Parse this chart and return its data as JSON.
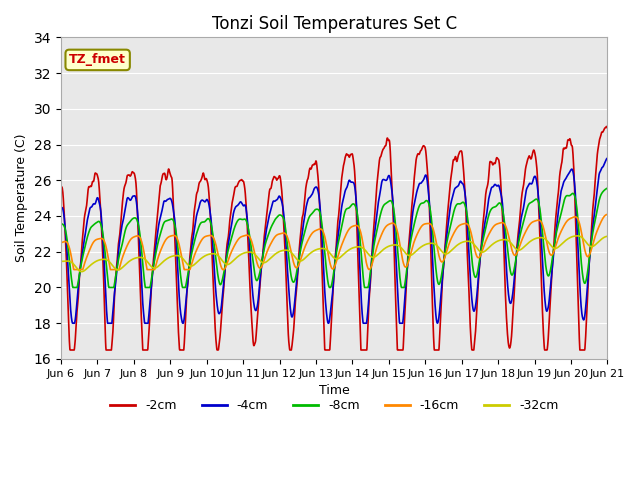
{
  "title": "Tonzi Soil Temperatures Set C",
  "xlabel": "Time",
  "ylabel": "Soil Temperature (C)",
  "ylim": [
    16,
    34
  ],
  "yticks": [
    16,
    18,
    20,
    22,
    24,
    26,
    28,
    30,
    32,
    34
  ],
  "x_tick_labels": [
    "Jun 6",
    "Jun 7",
    "Jun 8",
    "Jun 9",
    "Jun 10",
    "Jun 11",
    "Jun 12",
    "Jun 13",
    "Jun 14",
    "Jun 15",
    "Jun 16",
    "Jun 17",
    "Jun 18",
    "Jun 19",
    "Jun 20",
    "Jun 21"
  ],
  "series_colors": [
    "#cc0000",
    "#0000cc",
    "#00bb00",
    "#ff8800",
    "#cccc00"
  ],
  "series_labels": [
    "-2cm",
    "-4cm",
    "-8cm",
    "-16cm",
    "-32cm"
  ],
  "plot_bg_color": "#e8e8e8",
  "grid_color": "#ffffff",
  "annotation_text": "TZ_fmet",
  "annotation_fg": "#cc0000",
  "annotation_bg": "#ffffcc",
  "annotation_border": "#888800",
  "linewidth": 1.2,
  "figsize": [
    6.4,
    4.8
  ],
  "dpi": 100,
  "title_fontsize": 12,
  "axis_fontsize": 9,
  "tick_fontsize": 8
}
